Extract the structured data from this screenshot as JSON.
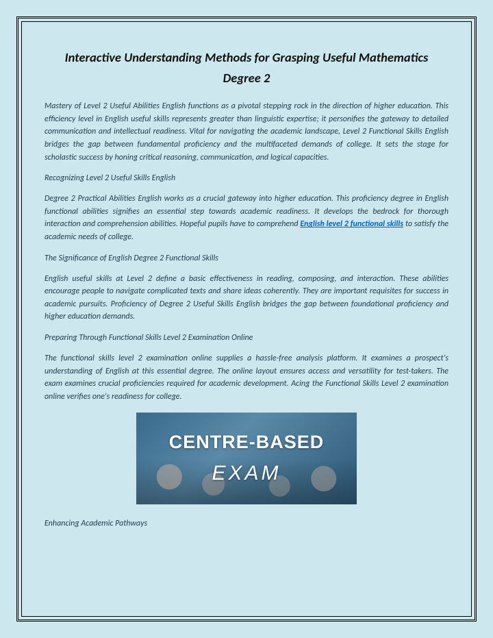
{
  "title": "Interactive Understanding Methods for Grasping Useful Mathematics Degree 2",
  "p1": "Mastery of Level 2 Useful Abilities English functions as a pivotal stepping rock in the direction of higher education. This efficiency level in English useful skills represents greater than linguistic expertise; it personifies the gateway to detailed communication and intellectual readiness. Vital for navigating the academic landscape, Level 2 Functional Skills English bridges the gap between fundamental proficiency and the multifaceted demands of college. It sets the stage for scholastic success by honing critical reasoning, communication, and logical capacities.",
  "h1": "Recognizing Level 2 Useful Skills English",
  "p2a": "Degree 2 Practical Abilities English works as a crucial gateway into higher education. This proficiency degree in English functional abilities signifies an essential step towards academic readiness. It develops the bedrock for thorough interaction and comprehension abilities. Hopeful pupils have to comprehend ",
  "link1": "English level 2 functional skills",
  "p2b": " to satisfy the academic needs of college.",
  "h2": "The Significance of English Degree 2 Functional Skills",
  "p3": "English useful skills at Level 2 define a basic effectiveness in reading, composing, and interaction. These abilities encourage people to navigate complicated texts and share ideas coherently. They are important requisites for success in academic pursuits. Proficiency of Degree 2 Useful Skills English bridges the gap between foundational proficiency and higher education demands.",
  "h3": "Preparing Through Functional Skills Level 2 Examination Online",
  "p4": "The functional skills level 2 examination online supplies a hassle-free analysis platform. It examines a prospect's understanding of English at this essential degree. The online layout ensures access and versatility for test-takers. The exam examines crucial proficiencies required for academic development. Acing the Functional Skills Level 2 examination online verifies one's readiness for college.",
  "hero": {
    "line1": "CENTRE-BASED",
    "line2": "EXAM"
  },
  "h4": "Enhancing Academic Pathways"
}
